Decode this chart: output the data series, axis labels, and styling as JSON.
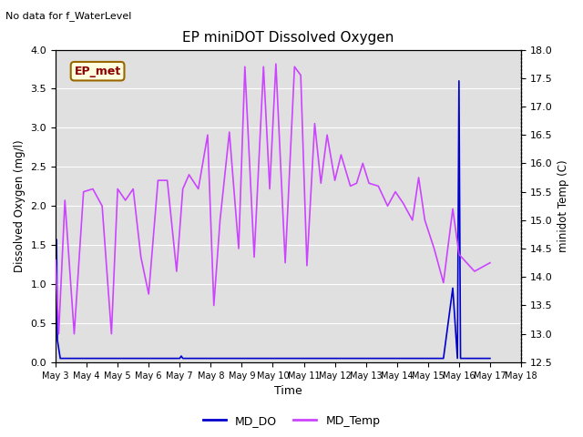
{
  "title": "EP miniDOT Dissolved Oxygen",
  "top_left_text": "No data for f_WaterLevel",
  "box_label": "EP_met",
  "xlabel": "Time",
  "ylabel_left": "Dissolved Oxygen (mg/l)",
  "ylabel_right": "minidot Temp (C)",
  "ylim_left": [
    0.0,
    4.0
  ],
  "ylim_right": [
    12.5,
    18.0
  ],
  "DO_color": "#0000cc",
  "Temp_color": "#cc44ff",
  "legend_entries": [
    "MD_DO",
    "MD_Temp"
  ],
  "background_color": "#e0e0e0",
  "grid_color": "#ffffff",
  "xtick_positions": [
    3,
    4,
    5,
    6,
    7,
    8,
    9,
    10,
    11,
    12,
    13,
    14,
    15,
    16,
    17,
    18
  ],
  "xtick_labels": [
    "May 3",
    "May 4",
    "May 5",
    "May 6",
    "May 7",
    "May 8",
    "May 9",
    "May 10",
    "May 11",
    "May 12",
    "May 13",
    "May 14",
    "May 15",
    "May 16",
    "May 17",
    "May 18"
  ],
  "DO_x": [
    3.0,
    3.03,
    3.06,
    3.15,
    3.5,
    4.0,
    4.3,
    4.5,
    4.8,
    5.0,
    5.2,
    5.5,
    5.8,
    6.0,
    6.2,
    6.5,
    6.8,
    7.0,
    7.05,
    7.1,
    7.5,
    7.8,
    8.0,
    8.5,
    8.8,
    9.0,
    9.5,
    9.8,
    10.0,
    10.5,
    10.8,
    11.0,
    11.5,
    11.8,
    12.0,
    12.5,
    12.8,
    13.0,
    13.5,
    13.8,
    14.0,
    14.5,
    14.8,
    15.0,
    15.5,
    15.8,
    15.95,
    16.0,
    16.05,
    16.1,
    16.5,
    17.0
  ],
  "DO_y": [
    0.05,
    1.57,
    0.28,
    0.05,
    0.05,
    0.05,
    0.05,
    0.05,
    0.05,
    0.05,
    0.05,
    0.05,
    0.05,
    0.05,
    0.05,
    0.05,
    0.05,
    0.05,
    0.08,
    0.05,
    0.05,
    0.05,
    0.05,
    0.05,
    0.05,
    0.05,
    0.05,
    0.05,
    0.05,
    0.05,
    0.05,
    0.05,
    0.05,
    0.05,
    0.05,
    0.05,
    0.05,
    0.05,
    0.05,
    0.05,
    0.05,
    0.05,
    0.05,
    0.05,
    0.05,
    0.95,
    0.05,
    3.6,
    0.05,
    0.05,
    0.05,
    0.05
  ],
  "Temp_x": [
    3.0,
    3.1,
    3.3,
    3.6,
    3.9,
    4.2,
    4.5,
    4.8,
    5.0,
    5.25,
    5.5,
    5.75,
    6.0,
    6.3,
    6.6,
    6.9,
    7.1,
    7.3,
    7.6,
    7.9,
    8.1,
    8.3,
    8.6,
    8.9,
    9.1,
    9.4,
    9.7,
    9.9,
    10.1,
    10.4,
    10.7,
    10.9,
    11.1,
    11.35,
    11.55,
    11.75,
    12.0,
    12.2,
    12.5,
    12.7,
    12.9,
    13.1,
    13.4,
    13.7,
    13.95,
    14.2,
    14.5,
    14.7,
    14.9,
    15.2,
    15.5,
    15.8,
    16.0,
    16.5,
    17.0
  ],
  "Temp_y": [
    14.3,
    13.0,
    15.35,
    13.0,
    15.5,
    15.55,
    15.25,
    13.0,
    15.55,
    15.35,
    15.55,
    14.35,
    13.7,
    15.7,
    15.7,
    14.1,
    15.55,
    15.8,
    15.55,
    16.5,
    13.5,
    15.0,
    16.55,
    14.5,
    17.7,
    14.35,
    17.7,
    15.55,
    17.75,
    14.25,
    17.7,
    17.55,
    14.2,
    16.7,
    15.65,
    16.5,
    15.7,
    16.15,
    15.6,
    15.65,
    16.0,
    15.65,
    15.6,
    15.25,
    15.5,
    15.3,
    15.0,
    15.75,
    15.0,
    14.5,
    13.9,
    15.2,
    14.4,
    14.1,
    14.25
  ]
}
